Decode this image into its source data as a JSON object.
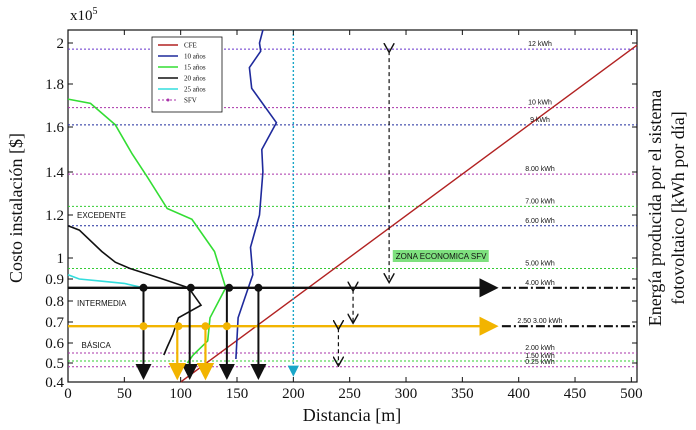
{
  "chart_data": {
    "type": "line",
    "xlabel": "Distancia [m]",
    "ylabel": "Costo instalación [$]",
    "y2label_line1": "Energía producida por el sistema",
    "y2label_line2": "fotovoltaico [kWh por día]",
    "multiplier": "x10",
    "multiplier_exp": "5",
    "xlim": [
      0,
      505
    ],
    "ylim": [
      0.4,
      2.06
    ],
    "xticks": [
      0,
      50,
      100,
      150,
      200,
      250,
      300,
      350,
      400,
      450,
      500
    ],
    "xtick_labels": [
      "0",
      "50",
      "100",
      "150",
      "200",
      "250",
      "300",
      "350",
      "400",
      "450",
      "500"
    ],
    "yticks": [
      0.4,
      0.5,
      0.6,
      0.7,
      0.8,
      0.9,
      1.0,
      1.2,
      1.4,
      1.6,
      1.8,
      2.0
    ],
    "ytick_labels": [
      "0.4",
      "0.5",
      "0.6",
      "0.7",
      "0.8",
      "0.9",
      "1",
      "1.2",
      "1.4",
      "1.6",
      "1.8",
      "2"
    ],
    "legend": {
      "position": "top-left",
      "entries": [
        {
          "label": "CFE",
          "color": "#b22222"
        },
        {
          "label": "10 años",
          "color": "#1f2a9c"
        },
        {
          "label": "15 años",
          "color": "#33dd33"
        },
        {
          "label": "20 años",
          "color": "#111111"
        },
        {
          "label": "25 años",
          "color": "#33dddd"
        },
        {
          "label": "SFV",
          "color": "#aa33aa"
        }
      ]
    },
    "series": [
      {
        "name": "CFE",
        "color": "#b22222",
        "x": [
          100,
          505
        ],
        "y": [
          0.4,
          1.99
        ]
      },
      {
        "name": "10 años",
        "color": "#1f2a9c",
        "x": [
          173,
          170,
          171,
          166,
          161,
          163,
          185,
          172,
          173,
          170,
          162,
          164,
          160,
          151,
          149
        ],
        "y": [
          2.06,
          2.0,
          1.96,
          1.92,
          1.88,
          1.78,
          1.62,
          1.5,
          1.4,
          1.2,
          1.05,
          0.92,
          0.86,
          0.72,
          0.52
        ]
      },
      {
        "name": "15 años",
        "color": "#33dd33",
        "x": [
          0,
          20,
          42,
          57,
          70,
          88,
          110,
          130,
          140,
          126,
          124,
          111,
          106
        ],
        "y": [
          1.73,
          1.71,
          1.61,
          1.48,
          1.38,
          1.23,
          1.18,
          1.03,
          0.86,
          0.72,
          0.61,
          0.54,
          0.5
        ]
      },
      {
        "name": "20 años",
        "color": "#111111",
        "x": [
          0,
          10,
          30,
          42,
          55,
          84,
          107,
          118,
          98,
          93,
          88,
          85
        ],
        "y": [
          1.15,
          1.13,
          1.03,
          0.98,
          0.95,
          0.9,
          0.86,
          0.78,
          0.72,
          0.64,
          0.58,
          0.54
        ]
      },
      {
        "name": "25 años",
        "color": "#33dddd",
        "x": [
          0,
          5,
          10,
          30,
          50,
          67
        ],
        "y": [
          0.92,
          0.91,
          0.9,
          0.89,
          0.88,
          0.86
        ]
      }
    ],
    "energy_levels": [
      {
        "label": "12 kWh",
        "y": 1.97,
        "color": "#6633cc",
        "dash": "dotted"
      },
      {
        "label": "10 kWh",
        "y": 1.69,
        "color": "#aa33aa",
        "dash": "dotted"
      },
      {
        "label": "9 kWh",
        "y": 1.61,
        "color": "#1f2a9c",
        "dash": "dotted"
      },
      {
        "label": "8.00 kWh",
        "y": 1.39,
        "color": "#aa33aa",
        "dash": "dotted"
      },
      {
        "label": "7.00 kWh",
        "y": 1.24,
        "color": "#33cc33",
        "dash": "dotted"
      },
      {
        "label": "6.00 kWh",
        "y": 1.15,
        "color": "#1f2a9c",
        "dash": "dotted"
      },
      {
        "label": "5.00 kWh",
        "y": 0.95,
        "color": "#33cc33",
        "dash": "dotted"
      },
      {
        "label": "2.00 kWh",
        "y": 0.55,
        "color": "#aa33aa",
        "dash": "dotted"
      },
      {
        "label": "1.50 kWh",
        "y": 0.51,
        "color": "#33cc33",
        "dash": "dotted"
      },
      {
        "label": "0.25 kWh",
        "y": 0.48,
        "color": "#aa33aa",
        "dash": "dotted"
      }
    ],
    "level_lines": [
      {
        "label": "4.00 kWh",
        "y": 0.86,
        "color": "#111111",
        "arrow_x": 378
      },
      {
        "label": "2.50   3.00 kWh",
        "y": 0.68,
        "color": "#f2b400",
        "arrow_x": 378
      }
    ],
    "zones": [
      {
        "label": "EXCEDENTE",
        "x": 8,
        "y": 1.2
      },
      {
        "label": "INTERMEDIA",
        "x": 8,
        "y": 0.79
      },
      {
        "label": "BÁSICA",
        "x": 12,
        "y": 0.59
      }
    ],
    "zone_economica": {
      "label": "ZONA ECONOMICA SFV",
      "x": 290,
      "y": 1.0
    },
    "black_points": [
      {
        "x": 67,
        "y": 0.86
      },
      {
        "x": 109,
        "y": 0.86
      },
      {
        "x": 143,
        "y": 0.86
      },
      {
        "x": 169,
        "y": 0.86
      }
    ],
    "yellow_points": [
      {
        "x": 67,
        "y": 0.68
      },
      {
        "x": 98,
        "y": 0.68
      },
      {
        "x": 122,
        "y": 0.68
      },
      {
        "x": 141,
        "y": 0.68
      }
    ],
    "black_drops": [
      67,
      108,
      141,
      169
    ],
    "yellow_drops": [
      97,
      122
    ],
    "vertical_marker": {
      "x": 200,
      "color": "#1aa6c8"
    },
    "range_arrows": [
      {
        "x": 285,
        "y1": 1.97,
        "y2": 0.88
      },
      {
        "x": 253,
        "y1": 0.86,
        "y2": 0.69
      },
      {
        "x": 240,
        "y1": 0.68,
        "y2": 0.48
      }
    ]
  }
}
